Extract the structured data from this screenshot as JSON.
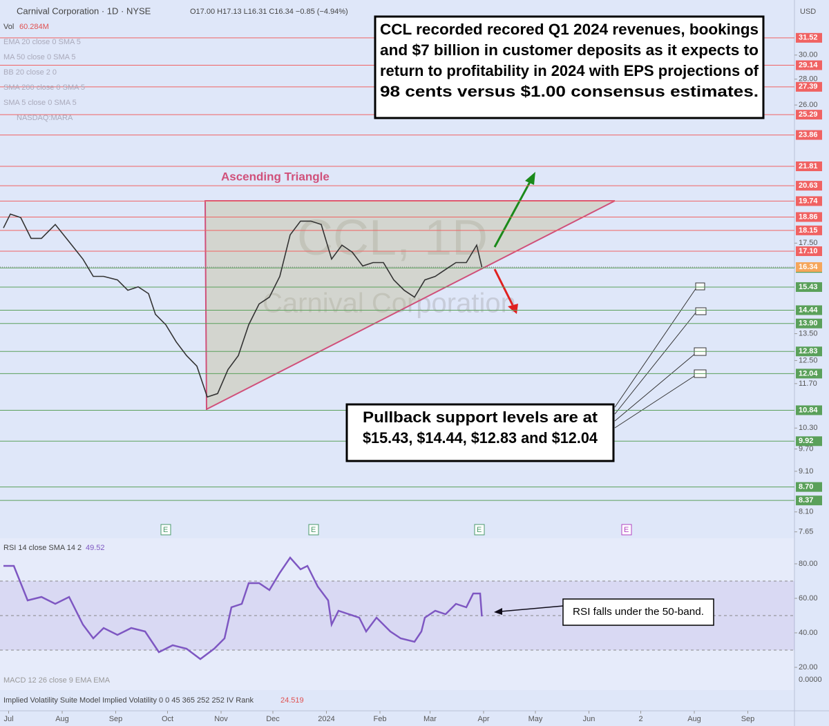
{
  "header": {
    "title": "Carnival Corporation · 1D · NYSE",
    "ohlc": "O17.00 H17.13 L16.31 C16.34 −0.85 (−4.94%)",
    "currency": "USD",
    "volume_label": "Vol",
    "volume_value": "60.284M"
  },
  "indicators": [
    "EMA 20 close 0 SMA 5",
    "MA 50 close 0 SMA 5",
    "BB 20 close 2 0",
    "SMA 200 close 0 SMA 5",
    "SMA 5 close 0 SMA 5",
    "NASDAQ:MARA"
  ],
  "watermark": [
    "CCL, 1D",
    "Carnival Corporation"
  ],
  "earnings_marker": "E",
  "macd_label": "MACD 12 26 close 9 EMA EMA",
  "iv_label": "Implied Volatility Suite Model Implied Volatility 0 0 45 365 252 252 IV Rank",
  "iv_value": "24.519",
  "iv_axis_label": "0.0000",
  "chart_data": [
    {
      "type": "line",
      "log_scale": true,
      "annotations": {
        "headline": [
          "CCL recorded recored Q1 2024 revenues, bookings",
          "and $7 billion in customer deposits as it expects to",
          "return to profitability in 2024 with EPS projections of",
          "98 cents versus $1.00 consensus estimates."
        ],
        "triangle": "Ascending Triangle",
        "support": [
          "Pullback support levels are at",
          "$15.43, $14.44, $12.83 and $12.04"
        ]
      },
      "x": [
        -3,
        1,
        7,
        13,
        19,
        27,
        35,
        43,
        49,
        55,
        63,
        69,
        75,
        81,
        85,
        91,
        97,
        103,
        109,
        115,
        121,
        127,
        133,
        139,
        145,
        151,
        157,
        163,
        169,
        175,
        181,
        187,
        193,
        199,
        205,
        211,
        217,
        223,
        229,
        235,
        241,
        247,
        253,
        259,
        265,
        271,
        274
      ],
      "values": [
        18.28,
        19.02,
        18.83,
        17.74,
        17.74,
        18.46,
        17.57,
        16.72,
        15.91,
        15.91,
        15.75,
        15.29,
        15.44,
        15.14,
        14.27,
        13.85,
        13.19,
        12.68,
        12.3,
        11.26,
        11.37,
        12.18,
        12.68,
        13.85,
        14.7,
        14.99,
        15.91,
        17.92,
        18.64,
        18.64,
        18.46,
        16.72,
        17.4,
        17.05,
        16.39,
        16.55,
        16.55,
        15.75,
        15.29,
        14.99,
        15.75,
        15.91,
        16.23,
        16.55,
        16.55,
        17.4,
        16.34
      ],
      "color": "#333333",
      "xlim": [
        -5,
        455
      ],
      "xticks": [
        {
          "value": 0,
          "label": "Jul"
        },
        {
          "value": 31,
          "label": "Aug"
        },
        {
          "value": 62,
          "label": "Sep"
        },
        {
          "value": 92,
          "label": "Oct"
        },
        {
          "value": 123,
          "label": "Nov"
        },
        {
          "value": 153,
          "label": "Dec"
        },
        {
          "value": 184,
          "label": "2024"
        },
        {
          "value": 215,
          "label": "Feb"
        },
        {
          "value": 244,
          "label": "Mar"
        },
        {
          "value": 275,
          "label": "Apr"
        },
        {
          "value": 305,
          "label": "May"
        },
        {
          "value": 336,
          "label": "Jun"
        },
        {
          "value": 366,
          "label": "2"
        },
        {
          "value": 397,
          "label": "Aug"
        },
        {
          "value": 428,
          "label": "Sep"
        }
      ],
      "ylim": [
        7.51,
        35.13
      ],
      "yticks": [
        {
          "value": 30,
          "label": "30.00"
        },
        {
          "value": 28,
          "label": "28.00"
        },
        {
          "value": 26,
          "label": "26.00"
        },
        {
          "value": 17.5,
          "label": "17.50"
        },
        {
          "value": 13.5,
          "label": "13.50"
        },
        {
          "value": 12.5,
          "label": "12.50"
        },
        {
          "value": 11.7,
          "label": "11.70"
        },
        {
          "value": 10.3,
          "label": "10.30"
        },
        {
          "value": 9.7,
          "label": "9.70"
        },
        {
          "value": 9.1,
          "label": "9.10"
        },
        {
          "value": 8.1,
          "label": "8.10"
        },
        {
          "value": 7.65,
          "label": "7.65"
        }
      ],
      "resistance_levels": [
        31.52,
        29.14,
        27.39,
        25.29,
        23.86,
        21.81,
        20.63,
        19.74,
        18.86,
        18.15,
        {
          "value": 17.1,
          "label": "17.10"
        }
      ],
      "resistance_color": "#f06262",
      "last_price": 16.34,
      "last_price_color": "#f5a65b",
      "support_levels": [
        {
          "value": 16.3,
          "label": "16.30"
        },
        15.43,
        14.44,
        {
          "value": 13.9,
          "label": "13.90"
        },
        12.83,
        12.04,
        10.84,
        9.92,
        {
          "value": 8.7,
          "label": "8.70"
        },
        8.37
      ],
      "support_color": "#5aa05a"
    },
    {
      "type": "line",
      "title": "RSI 14 close SMA 14 2",
      "value_label": "49.52",
      "annotation": "RSI falls under the 50-band.",
      "x": [
        -3,
        3,
        11,
        19,
        27,
        35,
        43,
        49,
        55,
        63,
        71,
        79,
        87,
        95,
        103,
        111,
        119,
        125,
        129,
        135,
        139,
        145,
        151,
        157,
        163,
        169,
        173,
        179,
        185,
        187,
        191,
        197,
        203,
        207,
        213,
        221,
        227,
        235,
        239,
        241,
        247,
        253,
        259,
        265,
        269,
        273,
        274
      ],
      "values": [
        78.8,
        78.8,
        58.8,
        60.8,
        56.8,
        60.8,
        44.8,
        36.8,
        42.8,
        38.8,
        42.8,
        40.8,
        28.8,
        32.8,
        30.8,
        24.8,
        30.8,
        36.8,
        54.8,
        56.8,
        68.8,
        68.8,
        64.8,
        74.8,
        83.6,
        76.8,
        78.8,
        66.8,
        58.8,
        44.8,
        52.8,
        50.8,
        48.8,
        40.8,
        48.8,
        40.8,
        36.8,
        34.8,
        40.8,
        48.8,
        52.8,
        50.8,
        56.8,
        54.8,
        62.8,
        62.8,
        49.52
      ],
      "color": "#7e57c2",
      "bands": [
        30,
        50,
        70
      ],
      "ylim": [
        14.8,
        90.8
      ],
      "yticks": [
        {
          "value": 80,
          "label": "80.00"
        },
        {
          "value": 60,
          "label": "60.00"
        },
        {
          "value": 40,
          "label": "40.00"
        },
        {
          "value": 20,
          "label": "20.00"
        }
      ]
    }
  ]
}
